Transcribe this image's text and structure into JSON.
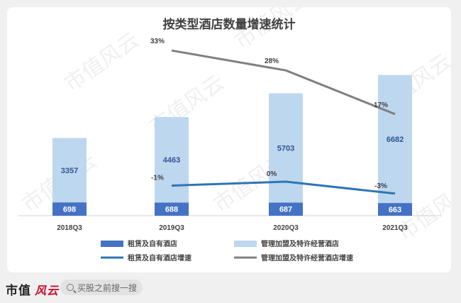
{
  "watermark": "市值风云",
  "footer": {
    "brand_text": "市值",
    "brand_mark": "风云",
    "search_text": "买股之前搜一搜"
  },
  "colors": {
    "bar_self": "#4472c4",
    "bar_franchise": "#bdd7ee",
    "line_self": "#2e75b6",
    "line_franchise": "#808080"
  },
  "chart_data": {
    "type": "bar",
    "title": "按类型酒店数量增速统计",
    "categories": [
      "2018Q3",
      "2019Q3",
      "2020Q3",
      "2021Q3"
    ],
    "stacked": true,
    "series": [
      {
        "name": "租赁及自有酒店",
        "kind": "bar",
        "values": [
          698,
          688,
          687,
          663
        ],
        "labels": [
          "698",
          "688",
          "687",
          "663"
        ]
      },
      {
        "name": "管理加盟及特许经营酒店",
        "kind": "bar",
        "values": [
          3357,
          4463,
          5703,
          6682
        ],
        "labels": [
          "3357",
          "4463",
          "5703",
          "6682"
        ]
      },
      {
        "name": "租赁及自有酒店增速",
        "kind": "line",
        "values": [
          null,
          -1,
          0,
          -3
        ],
        "labels": [
          "",
          "-1%",
          "0%",
          "-3%"
        ]
      },
      {
        "name": "管理加盟及特许经营酒店增速",
        "kind": "line",
        "values": [
          null,
          33,
          28,
          17
        ],
        "labels": [
          "",
          "33%",
          "28%",
          "17%"
        ]
      }
    ],
    "legend_position": "bottom",
    "grid": false
  }
}
